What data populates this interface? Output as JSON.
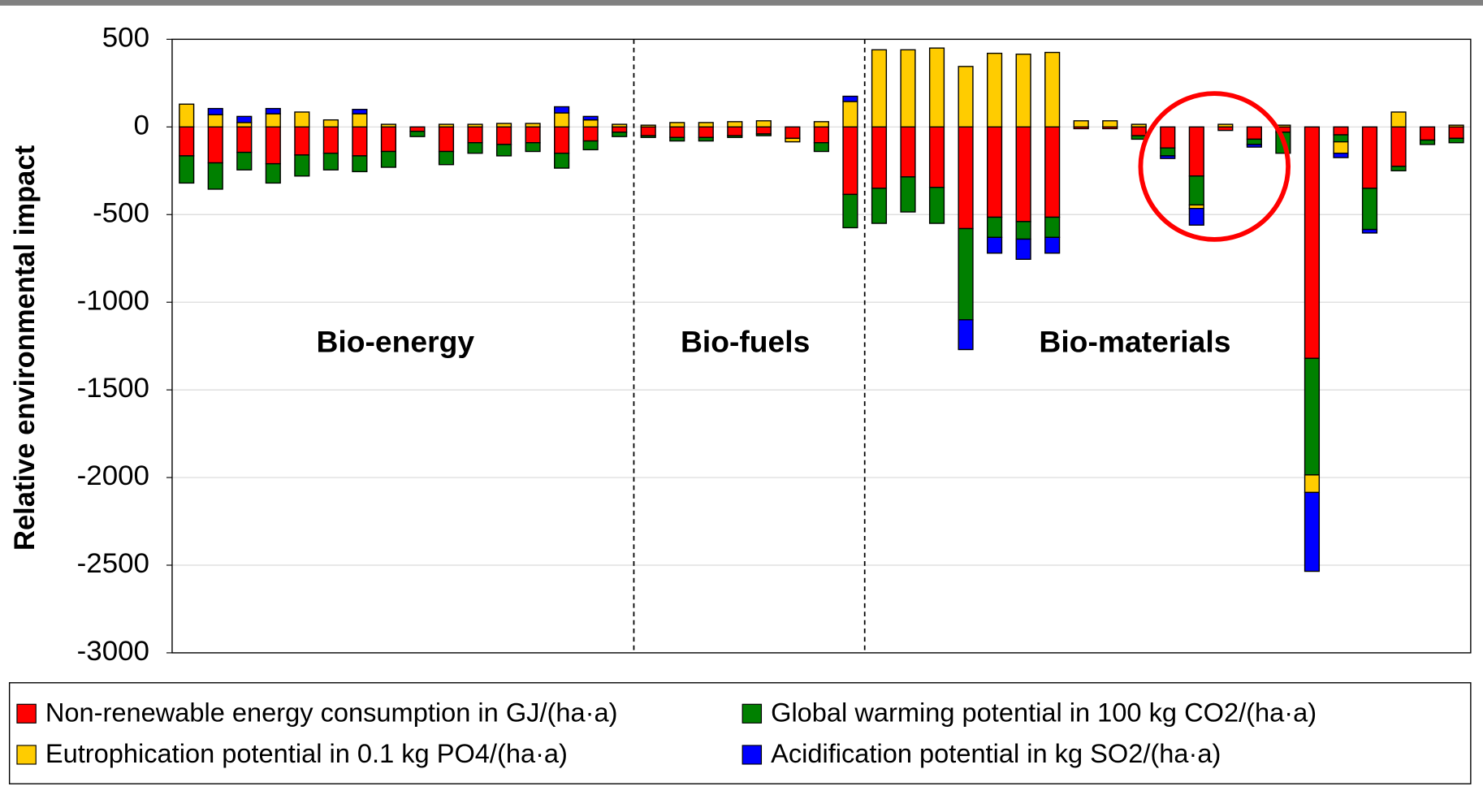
{
  "chart_data": {
    "type": "stacked_bar",
    "y_label": "Relative environmental impact",
    "annotations": [
      "Bio-energy",
      "Bio-fuels",
      "Bio-materials"
    ],
    "categories": [
      null,
      null,
      null,
      null,
      null,
      null,
      null,
      null,
      null,
      null,
      null,
      null,
      null,
      null,
      null,
      null,
      null,
      null,
      null,
      null,
      null,
      null,
      null,
      null,
      null,
      null,
      null,
      null,
      null,
      null,
      null,
      null,
      null,
      null,
      null,
      null,
      null,
      null,
      null,
      null,
      null,
      null,
      null,
      null,
      null
    ],
    "series": [
      {
        "name": "Non-renewable energy consumption in GJ/(ha·a)",
        "color": "#ff0000",
        "values": [
          -165,
          -205,
          -145,
          -210,
          -160,
          -150,
          -165,
          -140,
          -25,
          -140,
          -90,
          -100,
          -90,
          -150,
          -80,
          -30,
          -50,
          -60,
          -60,
          -50,
          -40,
          -65,
          -90,
          -385,
          -350,
          -285,
          -345,
          -580,
          -515,
          -540,
          -515,
          -10,
          -10,
          -50,
          -120,
          -280,
          -20,
          -70,
          -30,
          -1320,
          -45,
          -350,
          -225,
          -75,
          -65
        ]
      },
      {
        "name": "Global warming potential in 100 kg CO2/(ha·a)",
        "color": "#008000",
        "values": [
          -155,
          -150,
          -100,
          -110,
          -120,
          -95,
          -90,
          -90,
          -30,
          -75,
          -60,
          -65,
          -50,
          -85,
          -50,
          -25,
          -10,
          -20,
          -20,
          -10,
          -10,
          0,
          -50,
          -190,
          -200,
          -200,
          -205,
          -520,
          -115,
          -100,
          -115,
          0,
          0,
          -20,
          -45,
          -165,
          0,
          -30,
          -120,
          -665,
          -40,
          -235,
          -25,
          -25,
          -25
        ]
      },
      {
        "name": "Eutrophication potential in 0.1 kg PO4/(ha·a)",
        "color": "#ffcc00",
        "values": [
          130,
          70,
          25,
          75,
          85,
          40,
          75,
          15,
          0,
          15,
          15,
          20,
          20,
          80,
          40,
          15,
          10,
          25,
          25,
          30,
          35,
          -20,
          30,
          145,
          440,
          440,
          450,
          345,
          420,
          415,
          425,
          35,
          35,
          15,
          0,
          -20,
          15,
          0,
          10,
          -100,
          -65,
          0,
          85,
          0,
          10
        ]
      },
      {
        "name": "Acidification potential in kg SO2/(ha·a)",
        "color": "#0000ff",
        "values": [
          0,
          35,
          35,
          30,
          0,
          0,
          25,
          0,
          0,
          0,
          0,
          0,
          0,
          35,
          20,
          0,
          0,
          0,
          0,
          0,
          0,
          0,
          0,
          30,
          0,
          0,
          0,
          -170,
          -90,
          -115,
          -90,
          0,
          0,
          0,
          -15,
          -95,
          0,
          -15,
          0,
          -450,
          -25,
          -20,
          0,
          0,
          0
        ]
      }
    ],
    "ylim": [
      -3000,
      500
    ],
    "yticks": [
      500,
      0,
      -500,
      -1000,
      -1500,
      -2000,
      -2500,
      -3000
    ],
    "grid": true
  }
}
